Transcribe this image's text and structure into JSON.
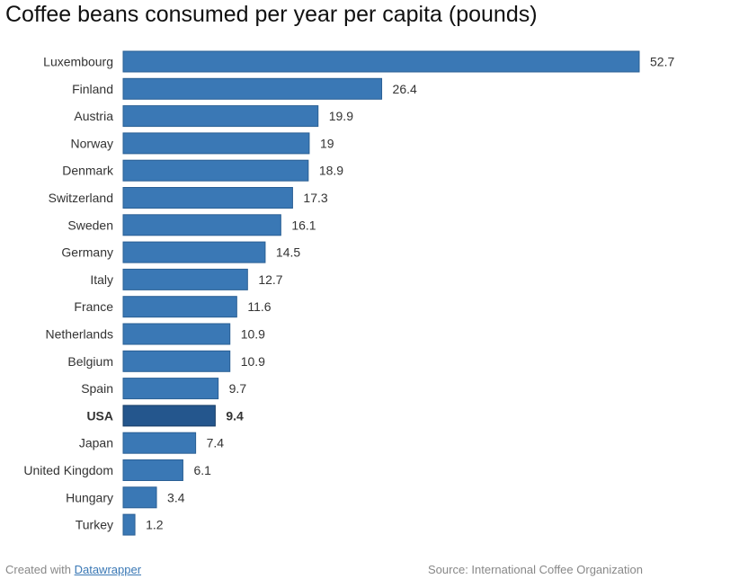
{
  "chart_data": {
    "type": "bar",
    "orientation": "horizontal",
    "title": "Coffee beans consumed per year per capita (pounds)",
    "categories": [
      "Luxembourg",
      "Finland",
      "Austria",
      "Norway",
      "Denmark",
      "Switzerland",
      "Sweden",
      "Germany",
      "Italy",
      "France",
      "Netherlands",
      "Belgium",
      "Spain",
      "USA",
      "Japan",
      "United Kingdom",
      "Hungary",
      "Turkey"
    ],
    "values": [
      52.7,
      26.4,
      19.9,
      19,
      18.9,
      17.3,
      16.1,
      14.5,
      12.7,
      11.6,
      10.9,
      10.9,
      9.7,
      9.4,
      7.4,
      6.1,
      3.4,
      1.2
    ],
    "highlight": "USA",
    "xlim": [
      0,
      52.7
    ],
    "grid": false,
    "bar_color": "#3a78b5",
    "highlight_color": "#24568d",
    "bar_stroke": "#2a5f94",
    "highlight_stroke": "#173d66"
  },
  "footer": {
    "created_prefix": "Created with ",
    "created_link": "Datawrapper",
    "source": "Source: International Coffee Organization"
  }
}
